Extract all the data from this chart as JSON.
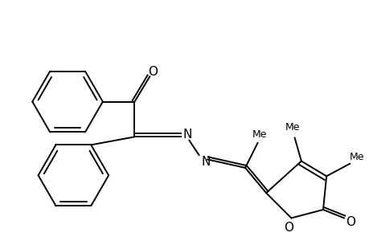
{
  "bg_color": "#ffffff",
  "line_color": "#000000",
  "line_width": 1.4,
  "figsize": [
    4.6,
    3.0
  ],
  "dpi": 100,
  "xlim": [
    0.0,
    4.6
  ],
  "ylim": [
    0.0,
    3.0
  ]
}
